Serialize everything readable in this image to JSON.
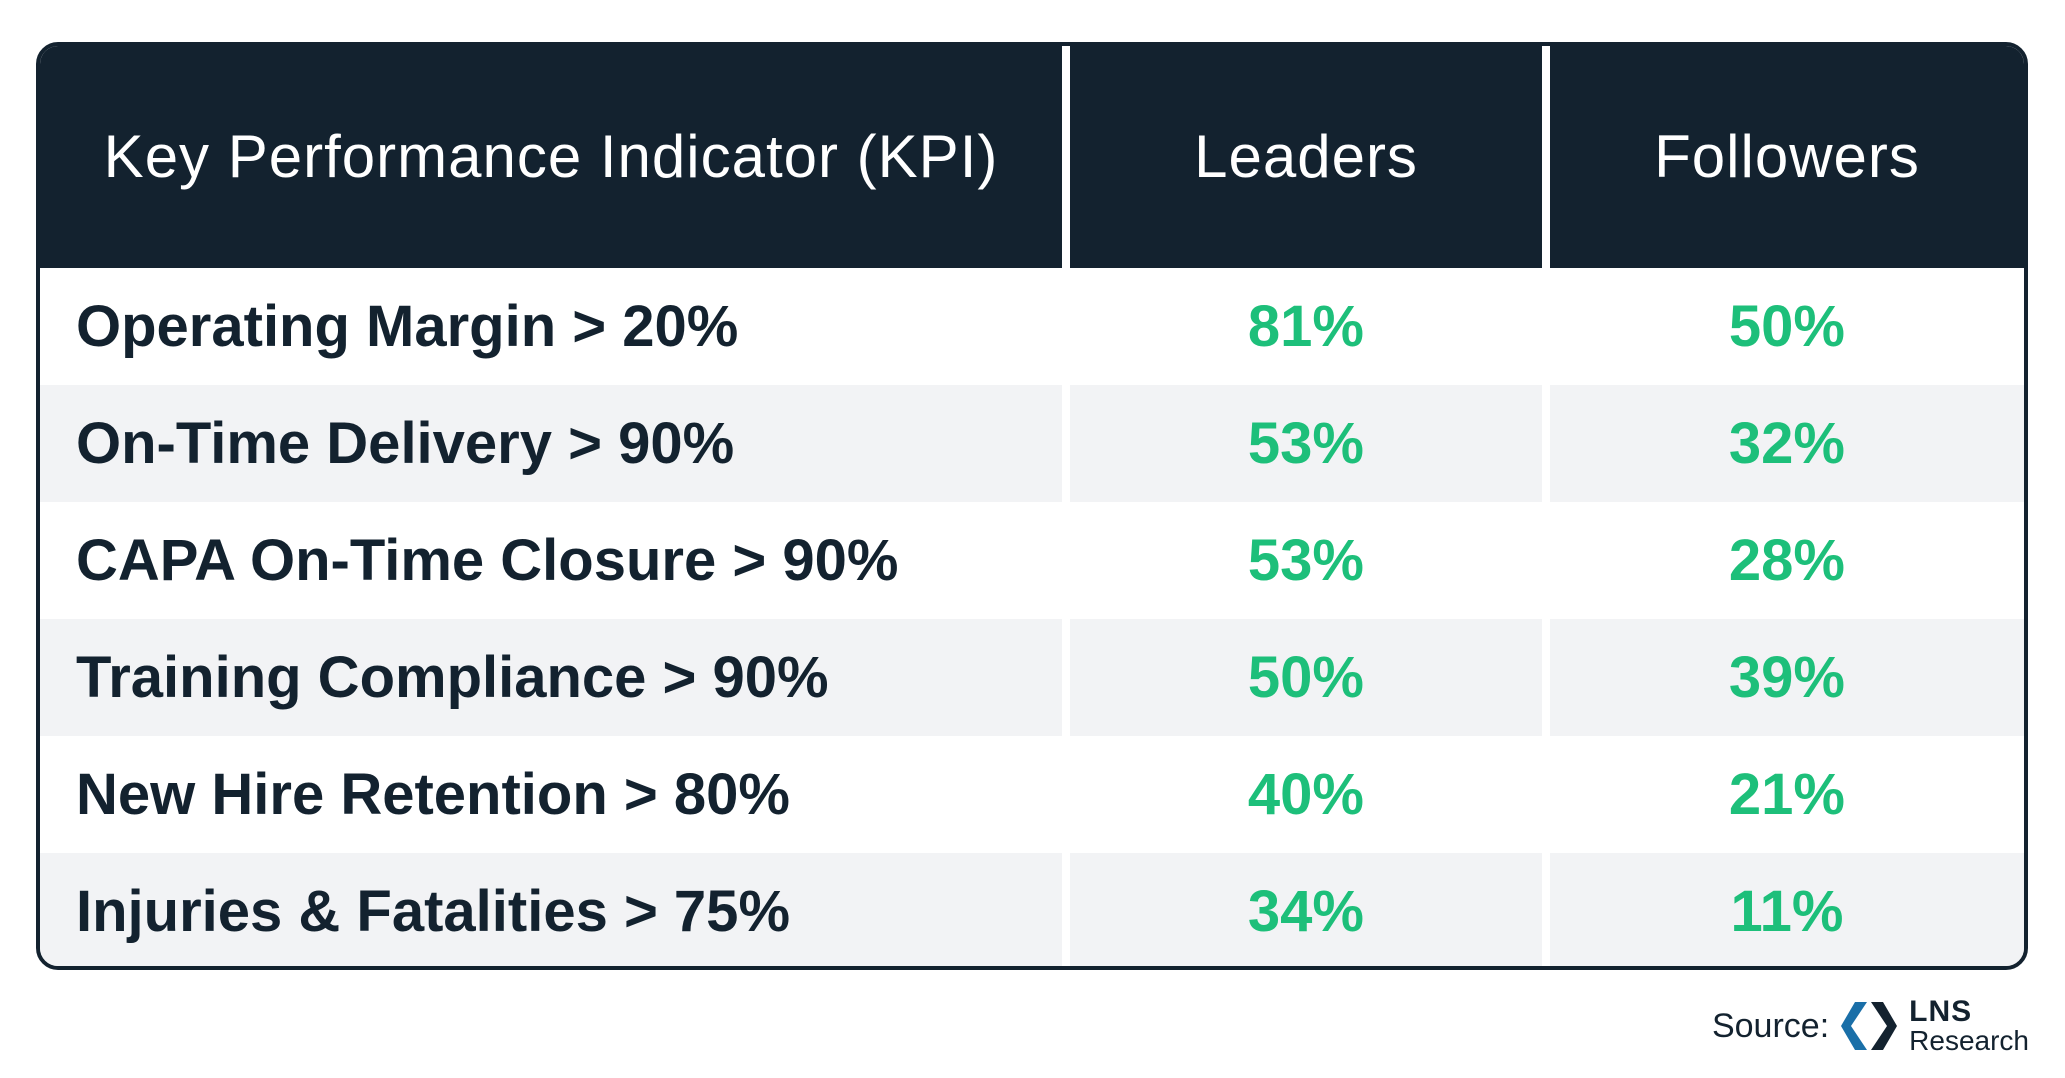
{
  "table": {
    "header": {
      "kpi": "Key Performance Indicator (KPI)",
      "leaders": "Leaders",
      "followers": "Followers"
    },
    "rows": [
      {
        "kpi": "Operating Margin > 20%",
        "leaders": "81%",
        "followers": "50%"
      },
      {
        "kpi": "On-Time Delivery > 90%",
        "leaders": "53%",
        "followers": "32%"
      },
      {
        "kpi": "CAPA On-Time Closure > 90%",
        "leaders": "53%",
        "followers": "28%"
      },
      {
        "kpi": "Training Compliance > 90%",
        "leaders": "50%",
        "followers": "39%"
      },
      {
        "kpi": "New Hire Retention > 80%",
        "leaders": "40%",
        "followers": "21%"
      },
      {
        "kpi": "Injuries & Fatalities > 75%",
        "leaders": "34%",
        "followers": "11%"
      }
    ]
  },
  "source": {
    "label": "Source:",
    "logo_name": "LNS",
    "logo_sub": "Research",
    "logo_icon": "lns-hexagon-logo"
  },
  "colors": {
    "header_bg": "#13222f",
    "value_green": "#1dbf7a",
    "alt_row_bg": "#f2f3f5",
    "logo_blue": "#1a6fa8"
  }
}
